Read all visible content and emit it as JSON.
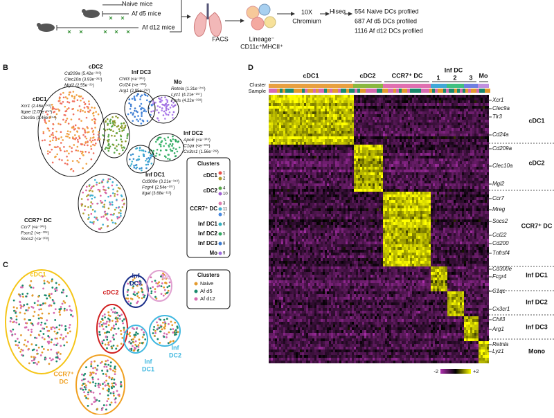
{
  "panel_a": {
    "mice": [
      "Naive mice",
      "Af d5 mice",
      "Af d12 mice"
    ],
    "facs": "FACS",
    "gate": [
      "Lineage⁻",
      "CD11c⁺MHCII⁺"
    ],
    "platform": [
      "10X",
      "Chromium"
    ],
    "sequencer": "Hiseq",
    "profiled": [
      "554 Naive DCs profiled",
      "687 Af d5 DCs profiled",
      "1116 Af d12 DCs profiled"
    ]
  },
  "panel_b": {
    "letter": "B",
    "clusters": [
      {
        "label": "cDC2",
        "genes": [
          {
            "gene": "Cd209a",
            "stat": "(5.42e⁻²⁸³)"
          },
          {
            "gene": "Clec10a",
            "stat": "(3.93e⁻²⁶²)"
          },
          {
            "gene": "Mgl2",
            "stat": "(2.55e⁻²⁹)"
          }
        ]
      },
      {
        "label": "Inf DC3",
        "genes": [
          {
            "gene": "Chil3",
            "stat": "(<e⁻³⁰⁸)"
          },
          {
            "gene": "Ccl24",
            "stat": "(<e⁻³⁰⁸)"
          },
          {
            "gene": "Arg1",
            "stat": "(2.95e⁻²⁹²)"
          }
        ]
      },
      {
        "label": "Mo",
        "genes": [
          {
            "gene": "Retnla",
            "stat": "(1.31e⁻²⁷⁶)"
          },
          {
            "gene": "Lyz1",
            "stat": "(4.21e⁻²⁵⁷)"
          },
          {
            "gene": "Fcrls",
            "stat": "(4.22e⁻²⁸⁸)"
          }
        ]
      },
      {
        "label": "cDC1",
        "genes": [
          {
            "gene": "Xcr1",
            "stat": "(2.46e⁻²⁴¹)"
          },
          {
            "gene": "Itgae",
            "stat": "(2.05e⁻²⁴¹)"
          },
          {
            "gene": "Clec9a",
            "stat": "(1.46e⁻²⁴⁴)"
          }
        ]
      },
      {
        "label": "Inf DC2",
        "genes": [
          {
            "gene": "ApoE",
            "stat": "(<e⁻³⁰⁸)"
          },
          {
            "gene": "C1qa",
            "stat": "(<e⁻³⁰⁸)"
          },
          {
            "gene": "Cx3cr1",
            "stat": "(1.56e⁻²³²)"
          }
        ]
      },
      {
        "label": "Inf DC1",
        "genes": [
          {
            "gene": "Cd300e",
            "stat": "(3.21e⁻¹⁵⁸)"
          },
          {
            "gene": "Fcgr4",
            "stat": "(2.54e⁻¹⁰⁷)"
          },
          {
            "gene": "Itgal",
            "stat": "(3.68e⁻¹¹²)"
          }
        ]
      },
      {
        "label": "CCR7⁺ DC",
        "genes": [
          {
            "gene": "Ccr7",
            "stat": "(<e⁻³⁰⁸)"
          },
          {
            "gene": "Fscn1",
            "stat": "(<e⁻³⁰⁸)"
          },
          {
            "gene": "Socs2",
            "stat": "(<e⁻³⁰⁸)"
          }
        ]
      }
    ],
    "legend": {
      "title": "Clusters",
      "rows": [
        {
          "label": "cDC1",
          "ids": [
            "1",
            "2"
          ]
        },
        {
          "label": "cDC2",
          "ids": [
            "4",
            "10"
          ]
        },
        {
          "label": "CCR7⁺ DC",
          "ids": [
            "3",
            "11",
            "7"
          ]
        },
        {
          "label": "Inf DC1",
          "ids": [
            "6"
          ]
        },
        {
          "label": "Inf DC2",
          "ids": [
            "5"
          ]
        },
        {
          "label": "Inf DC3",
          "ids": [
            "8"
          ]
        },
        {
          "label": "Mo",
          "ids": [
            "9"
          ]
        }
      ]
    }
  },
  "panel_c": {
    "letter": "C",
    "clusters": [
      [
        "cDC1"
      ],
      [
        "cDC2"
      ],
      [
        "Inf",
        "DC3"
      ],
      [
        "Mo"
      ],
      [
        "Inf",
        "DC2"
      ],
      [
        "Inf",
        "DC1"
      ],
      [
        "CCR7⁺",
        "DC"
      ]
    ],
    "legend": {
      "title": "Clusters",
      "items": [
        "Naive",
        "Af d5",
        "Af d12"
      ]
    }
  },
  "panel_d": {
    "letter": "D",
    "row_labels": [
      "Cluster",
      "Sample"
    ],
    "header": [
      "cDC1",
      "cDC2",
      "CCR7⁺ DC",
      "Inf DC",
      "1",
      "2",
      "3",
      "Mo"
    ],
    "genes": [
      "Xcr1",
      "Clec9a",
      "Tlr3",
      "Cd24a",
      "Cd209a",
      "Clec10a",
      "Mgl2",
      "Ccr7",
      "Mreg",
      "Socs2",
      "Ccl22",
      "Cd200",
      "Tnfrsf4",
      "Cd300e",
      "Fcgr4",
      "C1qc",
      "Cx3cr1",
      "Chil3",
      "Arg1",
      "Retnla",
      "Lyz1"
    ],
    "groups": [
      "cDC1",
      "cDC2",
      "CCR7⁺ DC",
      "Inf DC1",
      "Inf DC2",
      "Inf DC3",
      "Mono"
    ],
    "colorbar": [
      "-2",
      "+2"
    ]
  }
}
